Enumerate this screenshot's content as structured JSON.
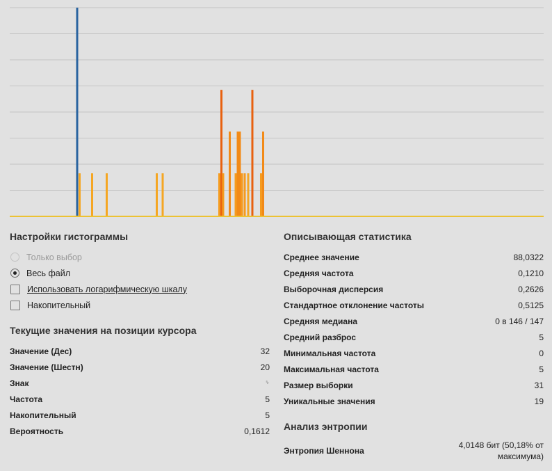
{
  "chart_data": {
    "type": "bar",
    "ylim": [
      0,
      8
    ],
    "grid": true,
    "baseline_color": "#ecc233",
    "bars": [
      {
        "x": 111,
        "value": 8,
        "color": "#2a64a0"
      },
      {
        "x": 114.5,
        "value": 1.65,
        "color": "#f5a623"
      },
      {
        "x": 132.5,
        "value": 1.65,
        "color": "#f5a623"
      },
      {
        "x": 153.5,
        "value": 1.65,
        "color": "#f5a623"
      },
      {
        "x": 225.5,
        "value": 1.65,
        "color": "#f5a623"
      },
      {
        "x": 234,
        "value": 1.65,
        "color": "#f5a623"
      },
      {
        "x": 315.5,
        "value": 1.65,
        "color": "#f59b1f"
      },
      {
        "x": 318.5,
        "value": 4.85,
        "color": "#e8610f"
      },
      {
        "x": 321,
        "value": 1.65,
        "color": "#f59b1f"
      },
      {
        "x": 330.5,
        "value": 3.25,
        "color": "#f28a17"
      },
      {
        "x": 339,
        "value": 1.65,
        "color": "#f59b1f"
      },
      {
        "x": 342,
        "value": 3.25,
        "color": "#f28a17"
      },
      {
        "x": 345,
        "value": 3.25,
        "color": "#f28a17"
      },
      {
        "x": 348,
        "value": 1.65,
        "color": "#f59b1f"
      },
      {
        "x": 352,
        "value": 1.65,
        "color": "#f59b1f"
      },
      {
        "x": 357,
        "value": 1.65,
        "color": "#f5a623"
      },
      {
        "x": 363,
        "value": 4.85,
        "color": "#e8610f"
      },
      {
        "x": 375.5,
        "value": 1.65,
        "color": "#f59b1f"
      },
      {
        "x": 378.5,
        "value": 3.25,
        "color": "#f28a17"
      }
    ]
  },
  "settings": {
    "title": "Настройки гистограммы",
    "options": [
      {
        "label": "Только выбор",
        "type": "radio",
        "checked": false,
        "disabled": true
      },
      {
        "label": "Весь файл",
        "type": "radio",
        "checked": true,
        "disabled": false
      },
      {
        "label": "Использовать логарифмическую шкалу",
        "type": "checkbox",
        "checked": false,
        "link": true
      },
      {
        "label": "Накопительный",
        "type": "checkbox",
        "checked": false,
        "link": false
      }
    ]
  },
  "cursor": {
    "title": "Текущие значения на позиции курсора",
    "rows": [
      {
        "label": "Значение (Дес)",
        "value": "32"
      },
      {
        "label": "Значение (Шестн)",
        "value": "20"
      },
      {
        "label": "Знак",
        "value": "␠"
      },
      {
        "label": "Частота",
        "value": "5"
      },
      {
        "label": "Накопительный",
        "value": "5"
      },
      {
        "label": "Вероятность",
        "value": "0,1612"
      }
    ]
  },
  "stats": {
    "title": "Описывающая статистика",
    "rows": [
      {
        "label": "Среднее значение",
        "value": "88,0322"
      },
      {
        "label": "Средняя частота",
        "value": "0,1210"
      },
      {
        "label": "Выборочная дисперсия",
        "value": "0,2626"
      },
      {
        "label": "Стандартное отклонение частоты",
        "value": "0,5125"
      },
      {
        "label": "Средняя медиана",
        "value": "0 в 146 / 147"
      },
      {
        "label": "Средний разброс",
        "value": "5"
      },
      {
        "label": "Минимальная частота",
        "value": "0"
      },
      {
        "label": "Максимальная частота",
        "value": "5"
      },
      {
        "label": "Размер выборки",
        "value": "31"
      },
      {
        "label": "Уникальные значения",
        "value": "19"
      }
    ]
  },
  "entropy": {
    "title": "Анализ энтропии",
    "label": "Энтропия Шеннона",
    "value": "4,0148 бит (50,18% от максимума)"
  }
}
